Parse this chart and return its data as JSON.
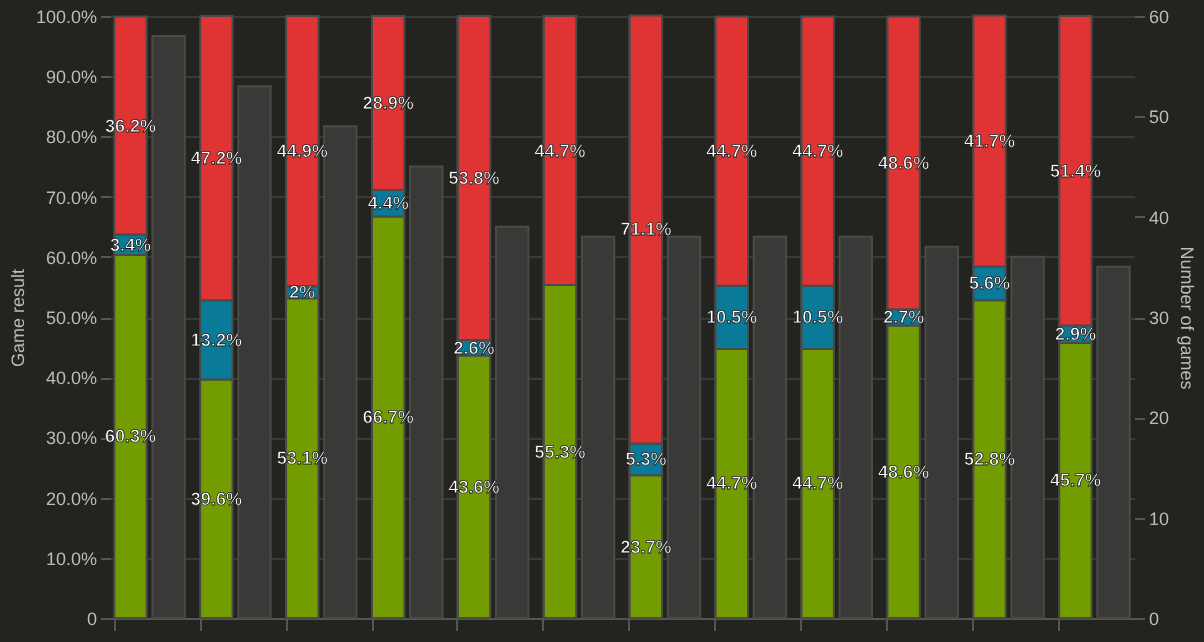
{
  "chart_data": {
    "type": "bar",
    "stacked": true,
    "categories": [
      null,
      null,
      null,
      null,
      null,
      null,
      null,
      null,
      null,
      null,
      null,
      null
    ],
    "series": [
      {
        "color": "#739c00",
        "values": [
          60.3,
          39.6,
          53.1,
          66.7,
          43.6,
          55.3,
          23.7,
          44.7,
          44.7,
          48.6,
          52.8,
          45.7
        ],
        "value_labels": [
          "60.3%",
          "39.6%",
          "53.1%",
          "66.7%",
          "43.6%",
          "55.3%",
          "23.7%",
          "44.7%",
          "44.7%",
          "48.6%",
          "52.8%",
          "45.7%"
        ]
      },
      {
        "color": "#0a7a99",
        "values": [
          3.4,
          13.2,
          2,
          4.4,
          2.6,
          null,
          5.3,
          10.5,
          10.5,
          2.7,
          5.6,
          2.9
        ],
        "value_labels": [
          "3.4%",
          "13.2%",
          "2%",
          "4.4%",
          "2.6%",
          null,
          "5.3%",
          "10.5%",
          "10.5%",
          "2.7%",
          "5.6%",
          "2.9%"
        ]
      },
      {
        "color": "#e03333",
        "values": [
          36.2,
          47.2,
          44.9,
          28.9,
          53.8,
          44.7,
          71.1,
          44.7,
          44.7,
          48.6,
          41.7,
          51.4
        ],
        "value_labels": [
          "36.2%",
          "47.2%",
          "44.9%",
          "28.9%",
          "53.8%",
          "44.7%",
          "71.1%",
          "44.7%",
          "44.7%",
          "48.6%",
          "41.7%",
          "51.4%"
        ]
      },
      {
        "color": "#393937",
        "axis": "y2",
        "values": [
          58,
          53,
          49,
          45,
          39,
          38,
          38,
          38,
          38,
          37,
          36,
          35
        ]
      }
    ],
    "ylabel": "Game result",
    "y2label": "Number of games",
    "ylim": [
      0,
      100
    ],
    "yticks": [
      0,
      {
        "value": 10,
        "label": "10.0%"
      },
      {
        "value": 20,
        "label": "20.0%"
      },
      {
        "value": 30,
        "label": "30.0%"
      },
      {
        "value": 40,
        "label": "40.0%"
      },
      {
        "value": 50,
        "label": "50.0%"
      },
      {
        "value": 60,
        "label": "60.0%"
      },
      {
        "value": 70,
        "label": "70.0%"
      },
      {
        "value": 80,
        "label": "80.0%"
      },
      {
        "value": 90,
        "label": "90.0%"
      },
      {
        "value": 100,
        "label": "100.0%"
      }
    ],
    "y2lim": [
      0,
      60
    ],
    "y2ticks": [
      0,
      10,
      20,
      30,
      40,
      50,
      60
    ],
    "grid": true
  }
}
